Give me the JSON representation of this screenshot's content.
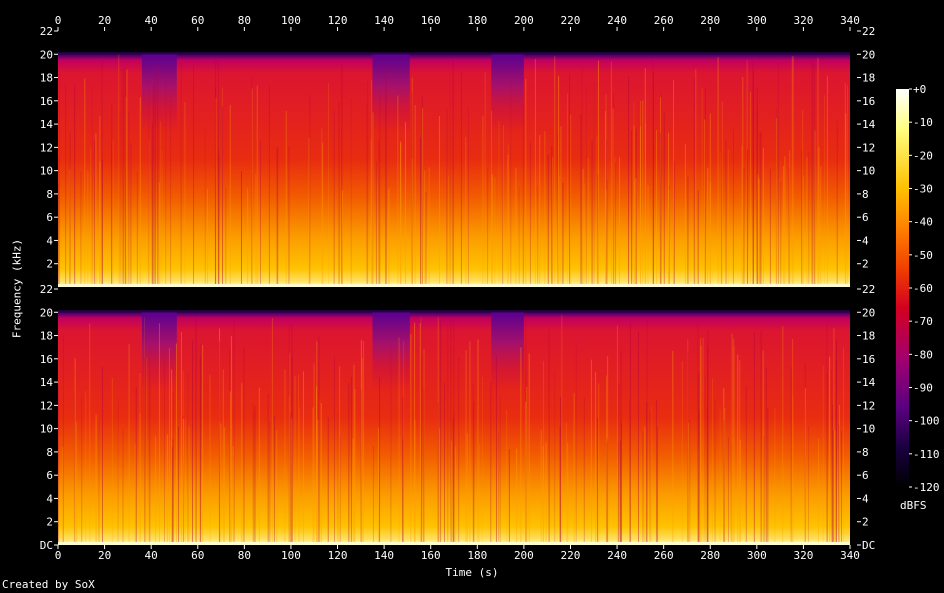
{
  "chart_data": {
    "type": "heatmap",
    "xlabel": "Time (s)",
    "ylabel": "Frequency (kHz)",
    "colorbar_label": "dBFS",
    "footer": "Created by SoX",
    "x_ticks": [
      "0",
      "20",
      "40",
      "60",
      "80",
      "100",
      "120",
      "140",
      "160",
      "180",
      "200",
      "220",
      "240",
      "260",
      "280",
      "300",
      "320",
      "340"
    ],
    "y_ticks_channel1": [
      "2",
      "4",
      "6",
      "8",
      "10",
      "12",
      "14",
      "16",
      "18",
      "20",
      "22"
    ],
    "y_ticks_channel2": [
      "DC",
      "2",
      "4",
      "6",
      "8",
      "10",
      "12",
      "14",
      "16",
      "18",
      "20",
      "22"
    ],
    "colorbar_ticks": [
      "+0",
      "-10",
      "-20",
      "-30",
      "-40",
      "-50",
      "-60",
      "-70",
      "-80",
      "-90",
      "-100",
      "-110",
      "-120"
    ],
    "xlim": [
      0,
      343
    ],
    "ylim_khz": [
      0,
      22
    ],
    "colorbar_range_db": [
      -120,
      0
    ],
    "channels": 2,
    "spectral_content_cutoff_khz": 20,
    "audio_end_s": 340,
    "quiet_segments_s": [
      [
        36,
        51
      ],
      [
        135,
        151
      ],
      [
        186,
        200
      ]
    ],
    "colors": {
      "background": "#000000",
      "colormap": [
        "#000000",
        "#1a0040",
        "#5a0080",
        "#a00070",
        "#d40020",
        "#f04000",
        "#ff8000",
        "#ffc000",
        "#ffff60",
        "#ffffff"
      ]
    }
  }
}
